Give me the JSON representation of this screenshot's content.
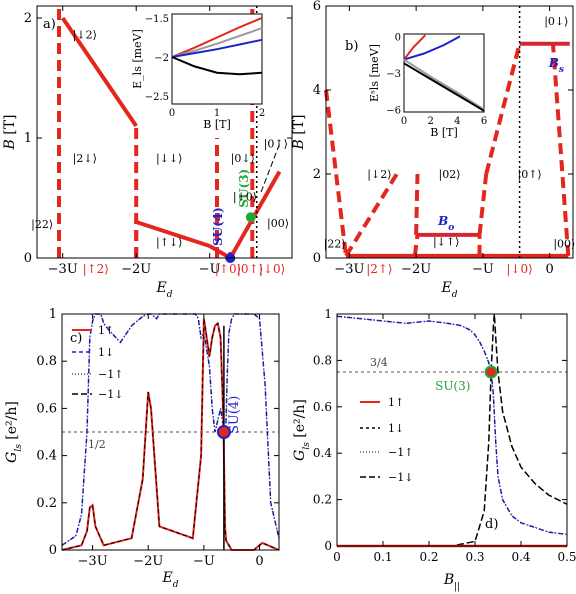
{
  "colors": {
    "red": "#e3261e",
    "blue": "#1f22c8",
    "green": "#22a83a",
    "magenta": "#b4256e",
    "gray": "#9a9a9a",
    "black": "#000000",
    "dashgray": "#555555"
  },
  "chart_data": [
    {
      "panel": "a)",
      "type": "line",
      "xlabel": "E_d",
      "ylabel": "B [T]",
      "xlim": [
        -3.35,
        0.12
      ],
      "ylim": [
        0,
        2.1
      ],
      "x_ticks": [
        {
          "x": -3,
          "label": "−3U"
        },
        {
          "x": -2,
          "label": "−2U"
        },
        {
          "x": -1,
          "label": "−U"
        }
      ],
      "x_ticks_red": [
        {
          "x": -2.55,
          "label": "|↑2⟩"
        },
        {
          "x": -0.75,
          "label": "|↑0⟩"
        },
        {
          "x": -0.45,
          "label": "|0↑⟩"
        },
        {
          "x": -0.15,
          "label": "|↓0⟩"
        }
      ],
      "y_ticks": [
        {
          "y": 0,
          "label": "0"
        },
        {
          "y": 1,
          "label": "1"
        },
        {
          "y": 2,
          "label": "2"
        }
      ],
      "state_labels": [
        {
          "text": "|↓2⟩",
          "x": -2.7,
          "y": 1.83
        },
        {
          "text": "|2↓⟩",
          "x": -2.7,
          "y": 0.8
        },
        {
          "text": "|22⟩",
          "x": -3.28,
          "y": 0.25
        },
        {
          "text": "|↓↓⟩",
          "x": -1.55,
          "y": 0.8
        },
        {
          "text": "|↑↓⟩",
          "x": -1.55,
          "y": 0.1
        },
        {
          "text": "|0↓⟩",
          "x": -0.55,
          "y": 0.8
        },
        {
          "text": "|↓0⟩",
          "x": -0.52,
          "y": 0.48
        },
        {
          "text": "|0↑⟩",
          "x": -0.1,
          "y": 0.92
        },
        {
          "text": "|00⟩",
          "x": -0.07,
          "y": 0.26
        }
      ],
      "point_labels": [
        {
          "text": "SU(4)",
          "x": -0.83,
          "y": 0.1,
          "color": "blue"
        },
        {
          "text": "SU(3)",
          "x": -0.48,
          "y": 0.42,
          "color": "green"
        }
      ],
      "points": [
        {
          "name": "SU(4)",
          "x": -0.72,
          "y": 0.0,
          "color": "blue"
        },
        {
          "name": "SU(3)",
          "x": -0.44,
          "y": 0.34,
          "color": "green"
        }
      ],
      "solid_lines": [
        {
          "x": [
            -3.0,
            -2.0
          ],
          "y": [
            2.0,
            1.1
          ]
        },
        {
          "x": [
            -2.0,
            -1.0
          ],
          "y": [
            0.3,
            0.1
          ]
        },
        {
          "x": [
            -1.0,
            -0.72
          ],
          "y": [
            0.1,
            0.0
          ]
        },
        {
          "x": [
            -0.72,
            -0.05
          ],
          "y": [
            0.0,
            0.72
          ]
        }
      ],
      "dashed_vertical": [
        {
          "x": -3.05,
          "y": [
            0,
            2.1
          ]
        },
        {
          "x": -2.0,
          "y": [
            0,
            1.1
          ]
        },
        {
          "x": -2.0,
          "y": [
            0,
            0.3
          ]
        },
        {
          "x": -0.9,
          "y": [
            0,
            1.0
          ]
        },
        {
          "x": -0.42,
          "y": [
            0,
            2.1
          ]
        },
        {
          "x": -0.72,
          "y": [
            0,
            0.05
          ]
        }
      ],
      "inset": {
        "xlabel": "B [T]",
        "ylabel": "E_ls [meV]",
        "xlim": [
          0,
          2
        ],
        "ylim": [
          -2.6,
          -1.45
        ],
        "x_ticks": [
          {
            "x": 0,
            "label": "0"
          },
          {
            "x": 1,
            "label": "1"
          },
          {
            "x": 2,
            "label": "2"
          }
        ],
        "y_ticks": [
          {
            "y": -1.5,
            "label": "−1.5"
          },
          {
            "y": -2,
            "label": "−2"
          },
          {
            "y": -2.5,
            "label": "−2.5"
          }
        ],
        "curves": [
          {
            "color": "red",
            "x": [
              0,
              0.5,
              1.0,
              1.5,
              2.0
            ],
            "y": [
              -2.0,
              -1.88,
              -1.75,
              -1.62,
              -1.5
            ]
          },
          {
            "color": "gray",
            "x": [
              0,
              0.5,
              1.0,
              1.5,
              2.0
            ],
            "y": [
              -2.0,
              -1.92,
              -1.83,
              -1.73,
              -1.63
            ]
          },
          {
            "color": "blue",
            "x": [
              0,
              0.5,
              1.0,
              1.5,
              2.0
            ],
            "y": [
              -2.0,
              -1.95,
              -1.9,
              -1.84,
              -1.78
            ]
          },
          {
            "color": "black",
            "x": [
              0,
              0.5,
              1.0,
              1.5,
              2.0
            ],
            "y": [
              -2.0,
              -2.12,
              -2.2,
              -2.22,
              -2.2
            ]
          }
        ]
      }
    },
    {
      "panel": "b)",
      "type": "line",
      "xlabel": "E_d",
      "ylabel": "B [T]",
      "xlim": [
        -3.35,
        0.35
      ],
      "ylim": [
        0,
        6
      ],
      "x_ticks": [
        {
          "x": -3,
          "label": "−3U"
        },
        {
          "x": -2,
          "label": "−2U"
        },
        {
          "x": -1,
          "label": "−U"
        },
        {
          "x": 0,
          "label": "0"
        }
      ],
      "x_ticks_red": [
        {
          "x": -2.55,
          "label": "|2↑⟩"
        },
        {
          "x": -0.45,
          "label": "|↓0⟩"
        }
      ],
      "y_ticks": [
        {
          "y": 0,
          "label": "0"
        },
        {
          "y": 2,
          "label": "2"
        },
        {
          "y": 4,
          "label": "4"
        },
        {
          "y": 6,
          "label": "6"
        }
      ],
      "state_labels": [
        {
          "text": "|↓2⟩",
          "x": -2.55,
          "y": 1.9
        },
        {
          "text": "|02⟩",
          "x": -1.5,
          "y": 1.9
        },
        {
          "text": "|0↑⟩",
          "x": -0.3,
          "y": 1.9
        },
        {
          "text": "|22⟩",
          "x": -3.22,
          "y": 0.25
        },
        {
          "text": "|↓↑⟩",
          "x": -1.55,
          "y": 0.3
        },
        {
          "text": "|00⟩",
          "x": 0.22,
          "y": 0.25
        },
        {
          "text": "|0↓⟩",
          "x": 0.1,
          "y": 5.55
        }
      ],
      "point_labels": [
        {
          "text": "B_o",
          "x": -1.55,
          "y": 0.78,
          "color": "blue"
        },
        {
          "text": "B_s",
          "x": 0.1,
          "y": 4.55,
          "color": "blue"
        }
      ],
      "solid_lines": [
        {
          "x": [
            -3.05,
            -0.72
          ],
          "y": [
            0.05,
            0.05
          ]
        },
        {
          "x": [
            -0.72,
            0.28
          ],
          "y": [
            0.05,
            0.05
          ]
        },
        {
          "x": [
            -1.98,
            -1.05
          ],
          "y": [
            0.55,
            0.55
          ]
        },
        {
          "x": [
            -0.45,
            0.3
          ],
          "y": [
            5.1,
            5.1
          ]
        }
      ],
      "magenta_lines": [
        {
          "x": [
            -1.98,
            -1.05
          ],
          "y": [
            0.55,
            0.55
          ]
        },
        {
          "x": [
            -0.45,
            0.3
          ],
          "y": [
            5.1,
            5.1
          ]
        }
      ],
      "dashed_lines": [
        {
          "x": [
            -3.35,
            -3.05
          ],
          "y": [
            4.0,
            0.05
          ]
        },
        {
          "x": [
            -3.05,
            -2.25
          ],
          "y": [
            0.05,
            2.1
          ]
        },
        {
          "x": [
            -2.0,
            -1.98
          ],
          "y": [
            0.55,
            2.0
          ]
        },
        {
          "x": [
            -2.02,
            -1.98
          ],
          "y": [
            0.05,
            0.55
          ]
        },
        {
          "x": [
            -1.05,
            -0.95
          ],
          "y": [
            0.55,
            2.0
          ]
        },
        {
          "x": [
            -1.05,
            -1.05
          ],
          "y": [
            0.05,
            0.55
          ]
        },
        {
          "x": [
            -0.95,
            -0.45
          ],
          "y": [
            2.0,
            5.1
          ]
        },
        {
          "x": [
            0.28,
            0.05
          ],
          "y": [
            0.05,
            5.1
          ]
        }
      ],
      "dotted_vertical": {
        "x": -0.45,
        "y": [
          0,
          6
        ]
      },
      "inset": {
        "xlabel": "B [T]",
        "ylabel": "E^s_ls [meV]",
        "xlim": [
          0,
          6
        ],
        "ylim": [
          -6.2,
          0.2
        ],
        "x_ticks": [
          {
            "x": 0,
            "label": "0"
          },
          {
            "x": 2,
            "label": "2"
          },
          {
            "x": 4,
            "label": "4"
          },
          {
            "x": 6,
            "label": "6"
          }
        ],
        "y_ticks": [
          {
            "y": 0,
            "label": "0"
          },
          {
            "y": -3,
            "label": "−3"
          },
          {
            "y": -6,
            "label": "−6"
          }
        ],
        "curves": [
          {
            "color": "red",
            "x": [
              0,
              0.7,
              1.6
            ],
            "y": [
              -1.9,
              -0.9,
              0.1
            ]
          },
          {
            "color": "blue",
            "x": [
              0,
              1.5,
              3.0,
              4.2
            ],
            "y": [
              -1.9,
              -1.4,
              -0.7,
              0.0
            ]
          },
          {
            "color": "gray",
            "x": [
              0,
              2,
              4,
              6
            ],
            "y": [
              -1.9,
              -3.3,
              -4.6,
              -6.0
            ]
          },
          {
            "color": "black",
            "x": [
              0,
              2,
              4,
              6
            ],
            "y": [
              -2.2,
              -3.5,
              -4.8,
              -6.1
            ]
          }
        ]
      }
    },
    {
      "panel": "c)",
      "type": "line",
      "xlabel": "E_d",
      "ylabel": "G_ls [e^2/h]",
      "xlim": [
        -3.55,
        0.35
      ],
      "ylim": [
        0,
        1
      ],
      "x_ticks": [
        {
          "x": -3,
          "label": "−3U"
        },
        {
          "x": -2,
          "label": "−2U"
        },
        {
          "x": -1,
          "label": "−U"
        },
        {
          "x": 0,
          "label": "0"
        }
      ],
      "y_ticks": [
        {
          "y": 0,
          "label": "0"
        },
        {
          "y": 0.2,
          "label": "0.2"
        },
        {
          "y": 0.4,
          "label": "0.4"
        },
        {
          "y": 0.6,
          "label": "0.6"
        },
        {
          "y": 0.8,
          "label": "0.8"
        },
        {
          "y": 1,
          "label": "1"
        }
      ],
      "hline": {
        "y": 0.5,
        "label": "1/2"
      },
      "point": {
        "name": "SU(4)",
        "x": -0.64,
        "y": 0.5,
        "label": "SU(4)"
      },
      "legend": [
        {
          "label": "1↑",
          "style": "red"
        },
        {
          "label": "1↓",
          "style": "blue-dash"
        },
        {
          "label": "−1↑",
          "style": "dotted"
        },
        {
          "label": "−1↓",
          "style": "black-dash"
        }
      ],
      "series": [
        {
          "name": "1↑",
          "x": [
            -3.55,
            -3.2,
            -3.1,
            -3.05,
            -3.0,
            -2.95,
            -2.8,
            -2.3,
            -2.1,
            -2.0,
            -1.95,
            -1.8,
            -1.2,
            -1.05,
            -1.0,
            -0.95,
            -0.9,
            -0.85,
            -0.8,
            -0.75,
            -0.7,
            -0.65,
            -0.62,
            -0.6,
            -0.5,
            -0.3,
            -0.1,
            0.0,
            0.05,
            0.35
          ],
          "y": [
            0.0,
            0.02,
            0.08,
            0.18,
            0.19,
            0.1,
            0.02,
            0.05,
            0.3,
            0.67,
            0.6,
            0.1,
            0.05,
            0.4,
            0.98,
            0.9,
            0.82,
            0.9,
            0.95,
            0.96,
            0.9,
            0.55,
            0.1,
            0.04,
            0.0,
            0.0,
            0.0,
            0.02,
            0.03,
            0.0
          ]
        },
        {
          "name": "1↓",
          "x": [
            -3.55,
            -3.3,
            -3.2,
            -3.1,
            -3.05,
            -3.0,
            -2.95,
            -2.85,
            -2.8,
            -2.7,
            -2.5,
            -2.3,
            -2.2,
            -2.1,
            -2.0,
            -1.95,
            -1.9,
            -1.85,
            -1.8,
            -1.7,
            -1.3,
            -1.15,
            -1.1,
            -1.05,
            -1.0,
            -0.95,
            -0.9,
            -0.85,
            -0.8,
            -0.75,
            -0.7,
            -0.65,
            -0.62,
            -0.6,
            -0.58,
            -0.55,
            -0.5,
            -0.45,
            -0.4,
            -0.3,
            -0.2,
            -0.1,
            0.0,
            0.1,
            0.2,
            0.35
          ],
          "y": [
            0.02,
            0.06,
            0.15,
            0.5,
            0.9,
            0.97,
            1.0,
            1.0,
            0.96,
            0.93,
            0.88,
            0.95,
            0.97,
            0.99,
            1.0,
            1.0,
            0.99,
            0.98,
            1.0,
            1.0,
            1.0,
            1.0,
            0.98,
            0.9,
            0.92,
            0.85,
            0.78,
            0.6,
            0.5,
            0.55,
            0.6,
            0.52,
            0.5,
            0.55,
            0.75,
            0.92,
            0.98,
            1.0,
            1.0,
            1.0,
            1.0,
            1.0,
            0.98,
            0.7,
            0.2,
            0.05
          ]
        }
      ]
    },
    {
      "panel": "d)",
      "type": "line",
      "xlabel": "B_||",
      "ylabel": "G_ls [e^2/h]",
      "xlim": [
        0,
        0.5
      ],
      "ylim": [
        0,
        1
      ],
      "x_ticks": [
        {
          "x": 0,
          "label": "0"
        },
        {
          "x": 0.1,
          "label": "0.1"
        },
        {
          "x": 0.2,
          "label": "0.2"
        },
        {
          "x": 0.3,
          "label": "0.3"
        },
        {
          "x": 0.4,
          "label": "0.4"
        },
        {
          "x": 0.5,
          "label": "0.5"
        }
      ],
      "y_ticks": [
        {
          "y": 0,
          "label": "0"
        },
        {
          "y": 0.2,
          "label": "0.2"
        },
        {
          "y": 0.4,
          "label": "0.4"
        },
        {
          "y": 0.6,
          "label": "0.6"
        },
        {
          "y": 0.8,
          "label": "0.8"
        },
        {
          "y": 1,
          "label": "1"
        }
      ],
      "hline": {
        "y": 0.75,
        "label": "3/4"
      },
      "point": {
        "name": "SU(3)",
        "x": 0.335,
        "y": 0.75,
        "label": "SU(3)"
      },
      "legend": [
        {
          "label": "1↑",
          "style": "red"
        },
        {
          "label": "1↓",
          "style": "blue-dash"
        },
        {
          "label": "−1↑",
          "style": "dotted"
        },
        {
          "label": "−1↓",
          "style": "black-dash"
        }
      ],
      "series": [
        {
          "name": "1↑",
          "x": [
            0,
            0.5
          ],
          "y": [
            0.0,
            0.0
          ]
        },
        {
          "name": "1↓",
          "x": [
            0,
            0.05,
            0.1,
            0.15,
            0.2,
            0.24,
            0.27,
            0.29,
            0.3,
            0.31,
            0.32,
            0.33,
            0.335,
            0.34,
            0.345,
            0.35,
            0.36,
            0.38,
            0.4,
            0.43,
            0.46,
            0.5
          ],
          "y": [
            0.99,
            0.98,
            0.97,
            0.96,
            0.97,
            0.96,
            0.95,
            0.93,
            0.91,
            0.88,
            0.84,
            0.79,
            0.75,
            0.65,
            0.45,
            0.3,
            0.2,
            0.13,
            0.1,
            0.08,
            0.06,
            0.05
          ]
        },
        {
          "name": "−1↓",
          "x": [
            0,
            0.25,
            0.3,
            0.32,
            0.33,
            0.335,
            0.34,
            0.342,
            0.345,
            0.35,
            0.36,
            0.38,
            0.4,
            0.43,
            0.46,
            0.5
          ],
          "y": [
            0.0,
            0.0,
            0.02,
            0.15,
            0.45,
            0.75,
            0.95,
            1.0,
            0.9,
            0.75,
            0.58,
            0.43,
            0.34,
            0.27,
            0.22,
            0.18
          ]
        }
      ]
    }
  ]
}
